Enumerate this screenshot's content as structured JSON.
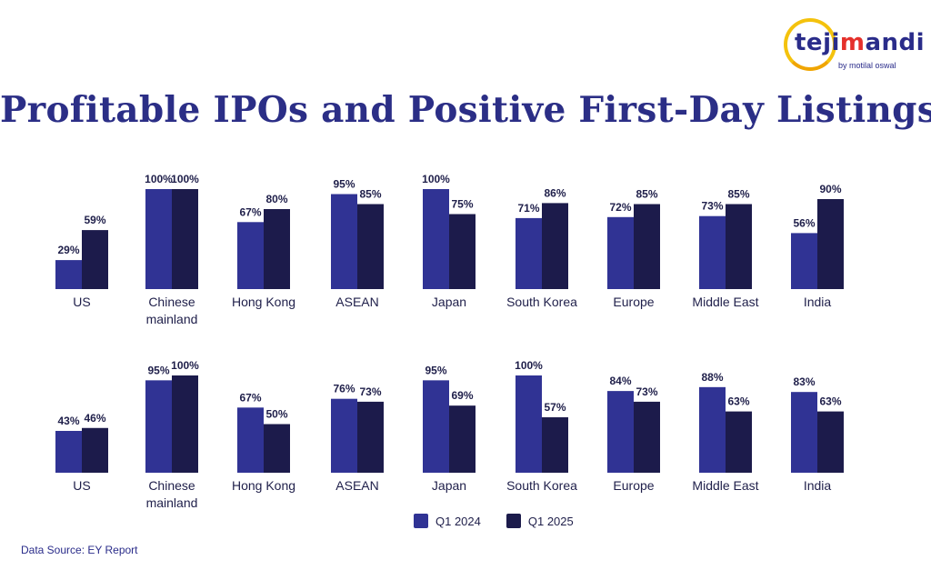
{
  "logo": {
    "word_prefix": "teji",
    "word_accent": "m",
    "word_suffix": "andi",
    "tagline": "by motilal oswal"
  },
  "title": "Profitable IPOs and Positive First-Day Listings",
  "colors": {
    "q1_2024": "#303394",
    "q1_2025": "#1c1b4b",
    "text": "#1f1f4a"
  },
  "legend": {
    "items": [
      "Q1 2024",
      "Q1 2025"
    ]
  },
  "source": "Data Source: EY Report",
  "chart_data": [
    {
      "type": "bar",
      "categories": [
        "US",
        "Chinese mainland",
        "Hong Kong",
        "ASEAN",
        "Japan",
        "South Korea",
        "Europe",
        "Middle East",
        "India"
      ],
      "category_lines": [
        [
          "US"
        ],
        [
          "Chinese",
          "mainland"
        ],
        [
          "Hong Kong"
        ],
        [
          "ASEAN"
        ],
        [
          "Japan"
        ],
        [
          "South Korea"
        ],
        [
          "Europe"
        ],
        [
          "Middle East"
        ],
        [
          "India"
        ]
      ],
      "series": [
        {
          "name": "Q1 2024",
          "values": [
            29,
            100,
            67,
            95,
            100,
            71,
            72,
            73,
            56
          ]
        },
        {
          "name": "Q1 2025",
          "values": [
            59,
            100,
            80,
            85,
            75,
            86,
            85,
            85,
            90
          ]
        }
      ],
      "labels": [
        [
          "29%",
          "100%",
          "67%",
          "95%",
          "100%",
          "71%",
          "72%",
          "73%",
          "56%"
        ],
        [
          "59%",
          "100%",
          "80%",
          "85%",
          "75%",
          "86%",
          "85%",
          "85%",
          "90%"
        ]
      ],
      "ylim": [
        0,
        100
      ],
      "title": "",
      "xlabel": "",
      "ylabel": "",
      "grid": false
    },
    {
      "type": "bar",
      "categories": [
        "US",
        "Chinese mainland",
        "Hong Kong",
        "ASEAN",
        "Japan",
        "South Korea",
        "Europe",
        "Middle East",
        "India"
      ],
      "category_lines": [
        [
          "US"
        ],
        [
          "Chinese",
          "mainland"
        ],
        [
          "Hong Kong"
        ],
        [
          "ASEAN"
        ],
        [
          "Japan"
        ],
        [
          "South Korea"
        ],
        [
          "Europe"
        ],
        [
          "Middle East"
        ],
        [
          "India"
        ]
      ],
      "series": [
        {
          "name": "Q1 2024",
          "values": [
            43,
            95,
            67,
            76,
            95,
            100,
            84,
            88,
            83
          ]
        },
        {
          "name": "Q1 2025",
          "values": [
            46,
            100,
            50,
            73,
            69,
            57,
            73,
            63,
            63
          ]
        }
      ],
      "labels": [
        [
          "43%",
          "95%",
          "67%",
          "76%",
          "95%",
          "100%",
          "84%",
          "88%",
          "83%"
        ],
        [
          "46%",
          "100%",
          "50%",
          "73%",
          "69%",
          "57%",
          "73%",
          "63%",
          "63%"
        ]
      ],
      "ylim": [
        0,
        100
      ],
      "title": "",
      "xlabel": "",
      "ylabel": "",
      "grid": false
    }
  ]
}
